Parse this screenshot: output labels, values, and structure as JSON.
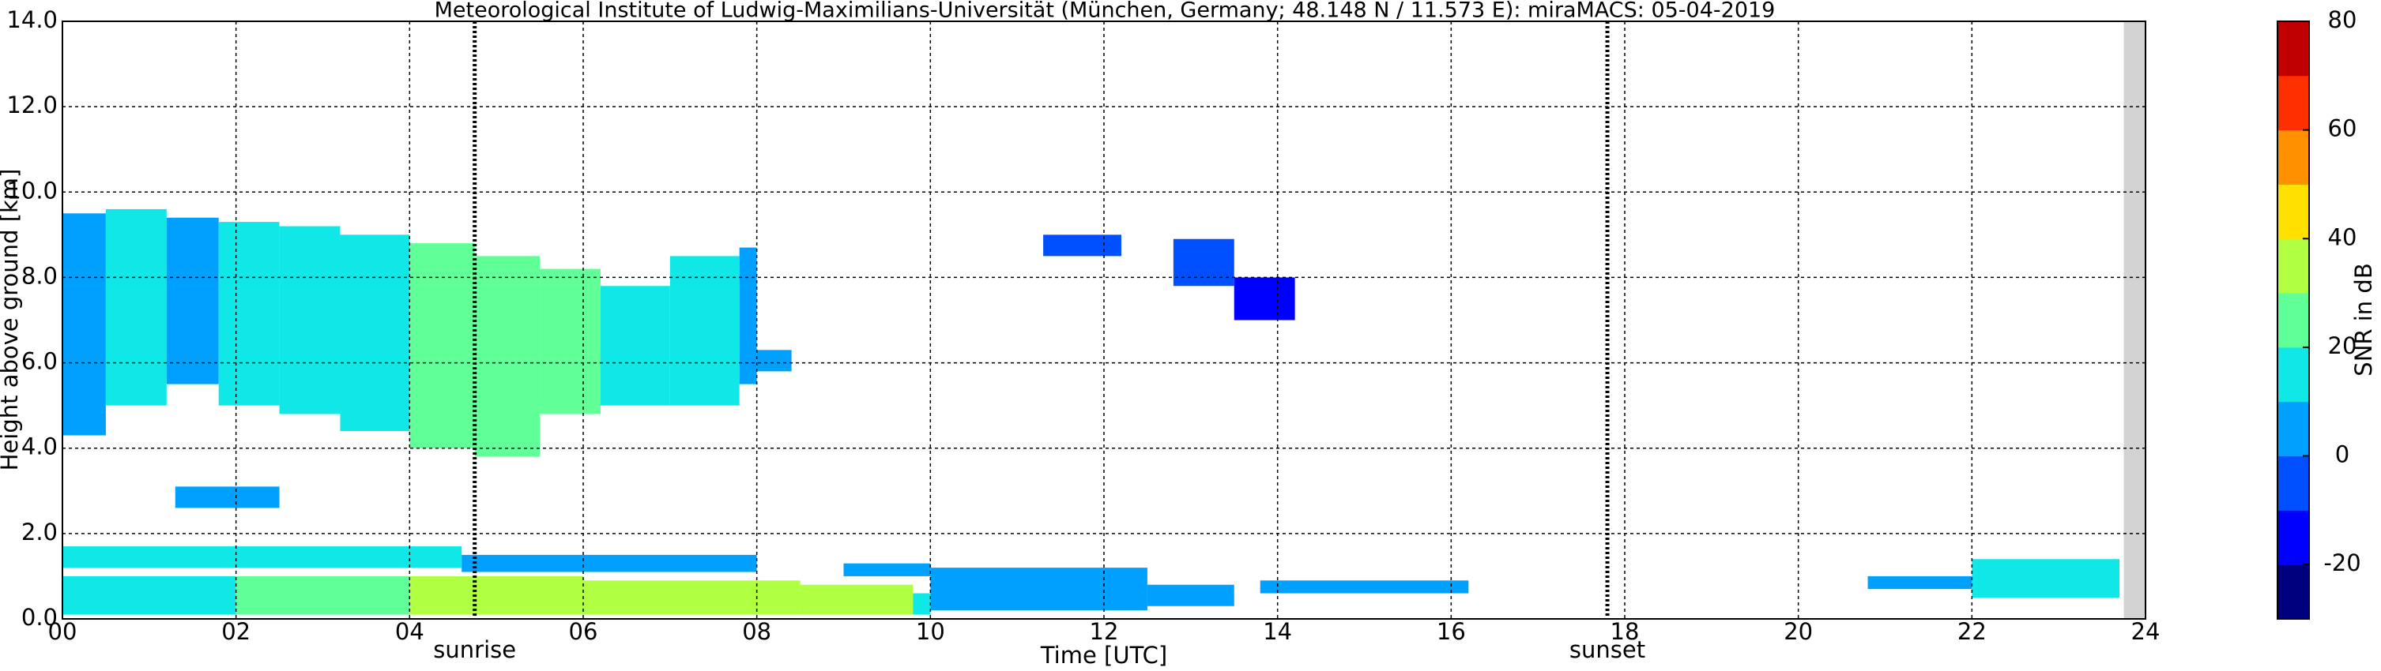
{
  "chart_data": {
    "type": "time-height",
    "title": "Meteorological Institute of Ludwig-Maximilians-Universität (München, Germany; 48.148 N / 11.573 E):    miraMACS: 05-04-2019",
    "x_label": "Time [UTC]",
    "y_label": "Height above ground [km]",
    "xlim": [
      0,
      24
    ],
    "xticks": [
      {
        "value": 0,
        "label": "00"
      },
      {
        "value": 2,
        "label": "02"
      },
      {
        "value": 4,
        "label": "04"
      },
      {
        "value": 6,
        "label": "06"
      },
      {
        "value": 8,
        "label": "08"
      },
      {
        "value": 10,
        "label": "10"
      },
      {
        "value": 12,
        "label": "12"
      },
      {
        "value": 14,
        "label": "14"
      },
      {
        "value": 16,
        "label": "16"
      },
      {
        "value": 18,
        "label": "18"
      },
      {
        "value": 20,
        "label": "20"
      },
      {
        "value": 22,
        "label": "22"
      },
      {
        "value": 24,
        "label": "24"
      }
    ],
    "ylim": [
      0,
      14
    ],
    "yticks": [
      {
        "value": 0,
        "label": "0.0"
      },
      {
        "value": 2,
        "label": "2.0"
      },
      {
        "value": 4,
        "label": "4.0"
      },
      {
        "value": 6,
        "label": "6.0"
      },
      {
        "value": 8,
        "label": "8.0"
      },
      {
        "value": 10,
        "label": "10.0"
      },
      {
        "value": 12,
        "label": "12.0"
      },
      {
        "value": 14,
        "label": "14.0"
      }
    ],
    "grid": true,
    "events": [
      {
        "x": 4.75,
        "label": "sunrise"
      },
      {
        "x": 17.8,
        "label": "sunset"
      }
    ],
    "no_data": [
      23.75,
      24
    ],
    "colorbar": {
      "label": "SNR in dB",
      "lim": [
        -30,
        80
      ],
      "ticks": [
        -20,
        0,
        20,
        40,
        60,
        80
      ],
      "colors": [
        "#00007f",
        "#0000ff",
        "#0050ff",
        "#00a0ff",
        "#10e8e8",
        "#60ff98",
        "#b0ff40",
        "#ffe000",
        "#ff9000",
        "#ff3000",
        "#c00000"
      ]
    },
    "cells": [
      [
        0,
        0.5,
        4.3,
        9.5,
        5
      ],
      [
        0.5,
        1.2,
        5.0,
        9.6,
        10
      ],
      [
        1.2,
        1.8,
        5.5,
        9.4,
        8
      ],
      [
        1.8,
        2.5,
        5.0,
        9.3,
        12
      ],
      [
        2.5,
        3.2,
        4.8,
        9.2,
        15
      ],
      [
        3.2,
        4.0,
        4.4,
        9.0,
        18
      ],
      [
        4.0,
        4.75,
        4.0,
        8.8,
        22
      ],
      [
        4.75,
        5.5,
        3.8,
        8.5,
        25
      ],
      [
        5.5,
        6.2,
        4.8,
        8.2,
        20
      ],
      [
        6.2,
        7.0,
        5.0,
        7.8,
        15
      ],
      [
        7.0,
        7.8,
        5.0,
        8.5,
        12
      ],
      [
        7.8,
        8.0,
        5.5,
        8.7,
        8
      ],
      [
        8.0,
        8.4,
        5.8,
        6.3,
        0
      ],
      [
        11.3,
        12.2,
        8.5,
        9.0,
        -10
      ],
      [
        12.8,
        13.5,
        7.8,
        8.9,
        -10
      ],
      [
        13.5,
        14.2,
        7.0,
        8.0,
        -15
      ],
      [
        1.3,
        2.5,
        2.6,
        3.1,
        5
      ],
      [
        0,
        4.6,
        1.2,
        1.7,
        10
      ],
      [
        4.6,
        8.0,
        1.1,
        1.5,
        8
      ],
      [
        0,
        2,
        0.1,
        1.0,
        15
      ],
      [
        2,
        4,
        0.1,
        1.0,
        25
      ],
      [
        4,
        6,
        0.1,
        1.0,
        30
      ],
      [
        6,
        8.5,
        0.1,
        0.9,
        38
      ],
      [
        8.5,
        9.8,
        0.1,
        0.8,
        30
      ],
      [
        9.8,
        10,
        0.1,
        0.6,
        10
      ],
      [
        9,
        10,
        1.0,
        1.3,
        5
      ],
      [
        10,
        12.5,
        0.2,
        1.2,
        5
      ],
      [
        12.5,
        13.5,
        0.3,
        0.8,
        5
      ],
      [
        13.8,
        16.2,
        0.6,
        0.9,
        8
      ],
      [
        20.8,
        22,
        0.7,
        1.0,
        5
      ],
      [
        22,
        23.7,
        0.5,
        1.4,
        10
      ]
    ]
  }
}
